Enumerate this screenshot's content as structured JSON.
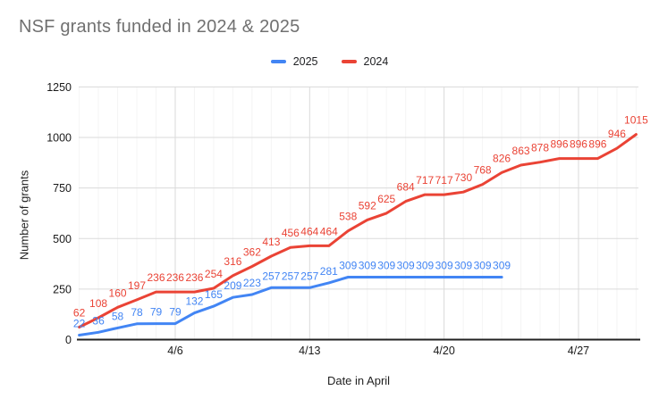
{
  "legend": {
    "items": [
      {
        "label": "2025",
        "color": "#4285f4"
      },
      {
        "label": "2024",
        "color": "#ea4335"
      }
    ]
  },
  "chart_data": {
    "type": "line",
    "title": "NSF grants funded in 2024 & 2025",
    "xlabel": "Date in April",
    "ylabel": "Number of grants",
    "x_start_day": 1,
    "x_tick_days": [
      6,
      13,
      20,
      27
    ],
    "x_tick_labels": [
      "4/6",
      "4/13",
      "4/20",
      "4/27"
    ],
    "y_ticks": [
      0,
      250,
      500,
      750,
      1000,
      1250
    ],
    "ylim": [
      0,
      1250
    ],
    "grid": true,
    "legend_position": "top",
    "series": [
      {
        "name": "2025",
        "color": "#4285f4",
        "values": [
          22,
          36,
          58,
          78,
          79,
          79,
          132,
          165,
          209,
          223,
          257,
          257,
          257,
          281,
          309,
          309,
          309,
          309,
          309,
          309,
          309,
          309,
          309
        ]
      },
      {
        "name": "2024",
        "color": "#ea4335",
        "values": [
          62,
          108,
          160,
          197,
          236,
          236,
          236,
          254,
          316,
          362,
          413,
          456,
          464,
          464,
          538,
          592,
          625,
          684,
          717,
          717,
          730,
          768,
          826,
          863,
          878,
          896,
          896,
          896,
          946,
          1015
        ]
      }
    ]
  }
}
